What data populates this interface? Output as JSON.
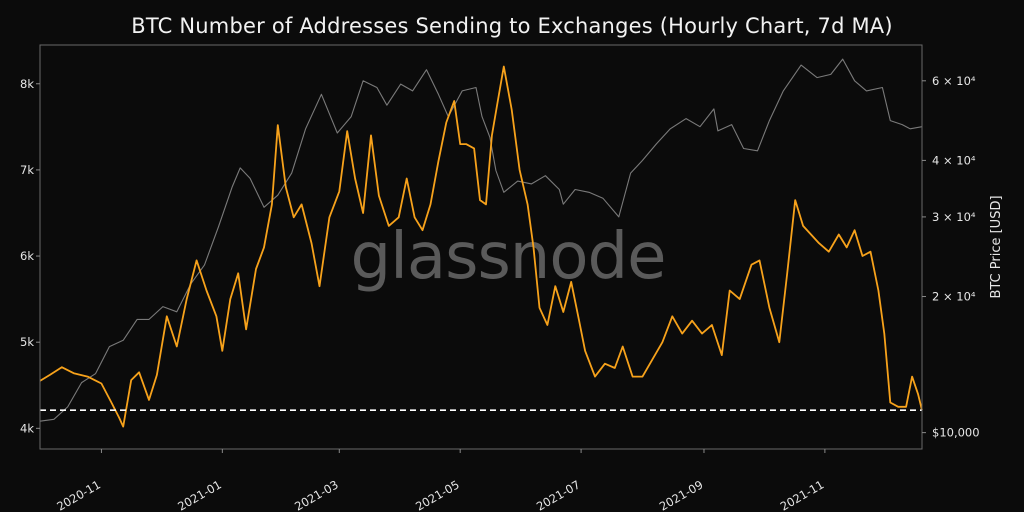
{
  "chart_data": {
    "type": "line",
    "title": "BTC Number of Addresses Sending to Exchanges (Hourly Chart, 7d MA)",
    "watermark": "glassnode",
    "x_tick_labels": [
      "2020-11",
      "2021-01",
      "2021-03",
      "2021-05",
      "2021-07",
      "2021-09",
      "2021-11"
    ],
    "x_range": [
      "2020-10-01",
      "2021-12-20"
    ],
    "y_left": {
      "label": "",
      "ticks": [
        4000,
        5000,
        6000,
        7000,
        8000
      ],
      "tick_labels": [
        "4k",
        "5k",
        "6k",
        "7k",
        "8k"
      ],
      "ylim": [
        3760,
        8450
      ]
    },
    "y_right": {
      "label": "BTC Price [USD]",
      "scale": "log",
      "ticks": [
        10000,
        20000,
        30000,
        40000,
        60000
      ],
      "tick_labels": [
        "$10,000",
        "2 × 10⁴",
        "3 × 10⁴",
        "4 × 10⁴",
        "6 × 10⁴"
      ],
      "ylim": [
        9200,
        72000
      ]
    },
    "reference_line": {
      "axis": "left",
      "value": 4210,
      "style": "dashed",
      "color": "#ffffff"
    },
    "grid": false,
    "series": [
      {
        "axis": "left",
        "color": "#f7a21b",
        "points": [
          [
            "2020-10-01",
            4550
          ],
          [
            "2020-10-06",
            4620
          ],
          [
            "2020-10-12",
            4710
          ],
          [
            "2020-10-18",
            4640
          ],
          [
            "2020-10-25",
            4600
          ],
          [
            "2020-11-01",
            4520
          ],
          [
            "2020-11-06",
            4300
          ],
          [
            "2020-11-10",
            4120
          ],
          [
            "2020-11-12",
            4020
          ],
          [
            "2020-11-16",
            4560
          ],
          [
            "2020-11-20",
            4650
          ],
          [
            "2020-11-25",
            4330
          ],
          [
            "2020-11-29",
            4620
          ],
          [
            "2020-12-04",
            5300
          ],
          [
            "2020-12-09",
            4950
          ],
          [
            "2020-12-14",
            5500
          ],
          [
            "2020-12-19",
            5950
          ],
          [
            "2020-12-24",
            5600
          ],
          [
            "2020-12-29",
            5300
          ],
          [
            "2021-01-01",
            4900
          ],
          [
            "2021-01-05",
            5500
          ],
          [
            "2021-01-09",
            5800
          ],
          [
            "2021-01-13",
            5150
          ],
          [
            "2021-01-18",
            5850
          ],
          [
            "2021-01-22",
            6100
          ],
          [
            "2021-01-26",
            6600
          ],
          [
            "2021-01-29",
            7520
          ],
          [
            "2021-02-02",
            6800
          ],
          [
            "2021-02-06",
            6450
          ],
          [
            "2021-02-10",
            6600
          ],
          [
            "2021-02-15",
            6150
          ],
          [
            "2021-02-19",
            5650
          ],
          [
            "2021-02-24",
            6450
          ],
          [
            "2021-03-01",
            6750
          ],
          [
            "2021-03-05",
            7450
          ],
          [
            "2021-03-09",
            6900
          ],
          [
            "2021-03-13",
            6500
          ],
          [
            "2021-03-17",
            7400
          ],
          [
            "2021-03-21",
            6700
          ],
          [
            "2021-03-26",
            6350
          ],
          [
            "2021-03-31",
            6450
          ],
          [
            "2021-04-04",
            6900
          ],
          [
            "2021-04-08",
            6450
          ],
          [
            "2021-04-12",
            6300
          ],
          [
            "2021-04-16",
            6600
          ],
          [
            "2021-04-20",
            7100
          ],
          [
            "2021-04-24",
            7550
          ],
          [
            "2021-04-28",
            7800
          ],
          [
            "2021-05-01",
            7300
          ],
          [
            "2021-05-04",
            7300
          ],
          [
            "2021-05-08",
            7250
          ],
          [
            "2021-05-11",
            6650
          ],
          [
            "2021-05-14",
            6600
          ],
          [
            "2021-05-17",
            7400
          ],
          [
            "2021-05-20",
            7800
          ],
          [
            "2021-05-23",
            8200
          ],
          [
            "2021-05-27",
            7700
          ],
          [
            "2021-05-31",
            7000
          ],
          [
            "2021-06-04",
            6600
          ],
          [
            "2021-06-07",
            6100
          ],
          [
            "2021-06-10",
            5400
          ],
          [
            "2021-06-14",
            5200
          ],
          [
            "2021-06-18",
            5650
          ],
          [
            "2021-06-22",
            5350
          ],
          [
            "2021-06-26",
            5700
          ],
          [
            "2021-06-30",
            5250
          ],
          [
            "2021-07-03",
            4900
          ],
          [
            "2021-07-08",
            4600
          ],
          [
            "2021-07-13",
            4750
          ],
          [
            "2021-07-18",
            4700
          ],
          [
            "2021-07-22",
            4950
          ],
          [
            "2021-07-27",
            4600
          ],
          [
            "2021-08-01",
            4600
          ],
          [
            "2021-08-06",
            4800
          ],
          [
            "2021-08-11",
            5000
          ],
          [
            "2021-08-16",
            5300
          ],
          [
            "2021-08-21",
            5100
          ],
          [
            "2021-08-26",
            5250
          ],
          [
            "2021-08-31",
            5100
          ],
          [
            "2021-09-05",
            5200
          ],
          [
            "2021-09-10",
            4850
          ],
          [
            "2021-09-14",
            5600
          ],
          [
            "2021-09-19",
            5500
          ],
          [
            "2021-09-25",
            5900
          ],
          [
            "2021-09-29",
            5950
          ],
          [
            "2021-10-04",
            5400
          ],
          [
            "2021-10-09",
            5000
          ],
          [
            "2021-10-13",
            5800
          ],
          [
            "2021-10-17",
            6650
          ],
          [
            "2021-10-21",
            6350
          ],
          [
            "2021-10-25",
            6250
          ],
          [
            "2021-10-29",
            6150
          ],
          [
            "2021-11-03",
            6050
          ],
          [
            "2021-11-08",
            6250
          ],
          [
            "2021-11-12",
            6100
          ],
          [
            "2021-11-16",
            6300
          ],
          [
            "2021-11-20",
            6000
          ],
          [
            "2021-11-24",
            6050
          ],
          [
            "2021-11-28",
            5600
          ],
          [
            "2021-12-01",
            5100
          ],
          [
            "2021-12-04",
            4300
          ],
          [
            "2021-12-08",
            4250
          ],
          [
            "2021-12-12",
            4250
          ],
          [
            "2021-12-15",
            4600
          ],
          [
            "2021-12-18",
            4400
          ],
          [
            "2021-12-20",
            4210
          ]
        ]
      },
      {
        "axis": "right",
        "color": "#7a7a7a",
        "points": [
          [
            "2020-10-01",
            10600
          ],
          [
            "2020-10-08",
            10700
          ],
          [
            "2020-10-15",
            11400
          ],
          [
            "2020-10-22",
            12900
          ],
          [
            "2020-10-29",
            13500
          ],
          [
            "2020-11-05",
            15500
          ],
          [
            "2020-11-12",
            16000
          ],
          [
            "2020-11-19",
            17800
          ],
          [
            "2020-11-25",
            17800
          ],
          [
            "2020-12-02",
            19000
          ],
          [
            "2020-12-09",
            18500
          ],
          [
            "2020-12-16",
            21300
          ],
          [
            "2020-12-23",
            23500
          ],
          [
            "2020-12-30",
            28500
          ],
          [
            "2021-01-06",
            35000
          ],
          [
            "2021-01-10",
            38500
          ],
          [
            "2021-01-15",
            36500
          ],
          [
            "2021-01-22",
            31500
          ],
          [
            "2021-01-29",
            33500
          ],
          [
            "2021-02-05",
            37500
          ],
          [
            "2021-02-12",
            47000
          ],
          [
            "2021-02-20",
            56000
          ],
          [
            "2021-02-28",
            46000
          ],
          [
            "2021-03-07",
            50000
          ],
          [
            "2021-03-13",
            60000
          ],
          [
            "2021-03-20",
            58000
          ],
          [
            "2021-03-25",
            53000
          ],
          [
            "2021-04-01",
            59000
          ],
          [
            "2021-04-07",
            57000
          ],
          [
            "2021-04-14",
            63500
          ],
          [
            "2021-04-20",
            56000
          ],
          [
            "2021-04-25",
            50000
          ],
          [
            "2021-05-02",
            57000
          ],
          [
            "2021-05-09",
            58000
          ],
          [
            "2021-05-12",
            50000
          ],
          [
            "2021-05-16",
            45000
          ],
          [
            "2021-05-19",
            38000
          ],
          [
            "2021-05-23",
            34000
          ],
          [
            "2021-05-30",
            36000
          ],
          [
            "2021-06-06",
            35500
          ],
          [
            "2021-06-13",
            37000
          ],
          [
            "2021-06-20",
            34500
          ],
          [
            "2021-06-22",
            32000
          ],
          [
            "2021-06-28",
            34500
          ],
          [
            "2021-07-05",
            34000
          ],
          [
            "2021-07-12",
            33000
          ],
          [
            "2021-07-20",
            30000
          ],
          [
            "2021-07-26",
            37500
          ],
          [
            "2021-08-01",
            40000
          ],
          [
            "2021-08-08",
            43500
          ],
          [
            "2021-08-15",
            47000
          ],
          [
            "2021-08-23",
            49500
          ],
          [
            "2021-08-30",
            47500
          ],
          [
            "2021-09-06",
            52000
          ],
          [
            "2021-09-08",
            46500
          ],
          [
            "2021-09-15",
            48000
          ],
          [
            "2021-09-21",
            42500
          ],
          [
            "2021-09-28",
            42000
          ],
          [
            "2021-10-04",
            49000
          ],
          [
            "2021-10-11",
            57000
          ],
          [
            "2021-10-20",
            65000
          ],
          [
            "2021-10-28",
            61000
          ],
          [
            "2021-11-04",
            62000
          ],
          [
            "2021-11-10",
            67000
          ],
          [
            "2021-11-16",
            60000
          ],
          [
            "2021-11-22",
            57000
          ],
          [
            "2021-11-30",
            58000
          ],
          [
            "2021-12-04",
            49000
          ],
          [
            "2021-12-10",
            48000
          ],
          [
            "2021-12-14",
            47000
          ],
          [
            "2021-12-20",
            47500
          ]
        ]
      }
    ]
  }
}
